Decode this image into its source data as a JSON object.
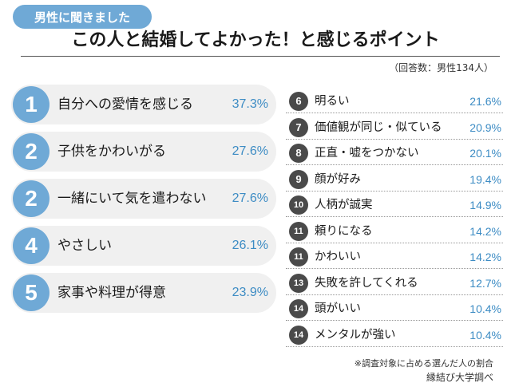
{
  "tag": "男性に聞きました",
  "title": "この人と結婚してよかった！と感じるポイント",
  "respondents": "（回答数：男性134人）",
  "footnote": "※調査対象に占める選んだ人の割合",
  "source": "縁結び大学調べ",
  "colors": {
    "accent": "#6fa9d6",
    "value": "#3d8cc4",
    "dark_badge": "#4a4a4a",
    "row_bg": "#f0f0f0"
  },
  "chart_data": {
    "type": "table",
    "title": "この人と結婚してよかった！と感じるポイント",
    "rows": [
      {
        "rank": "1",
        "label": "自分への愛情を感じる",
        "value": 37.3,
        "display": "37.3%"
      },
      {
        "rank": "2",
        "label": "子供をかわいがる",
        "value": 27.6,
        "display": "27.6%"
      },
      {
        "rank": "2",
        "label": "一緒にいて気を遣わない",
        "value": 27.6,
        "display": "27.6%"
      },
      {
        "rank": "4",
        "label": "やさしい",
        "value": 26.1,
        "display": "26.1%"
      },
      {
        "rank": "5",
        "label": "家事や料理が得意",
        "value": 23.9,
        "display": "23.9%"
      },
      {
        "rank": "6",
        "label": "明るい",
        "value": 21.6,
        "display": "21.6%"
      },
      {
        "rank": "7",
        "label": "価値観が同じ・似ている",
        "value": 20.9,
        "display": "20.9%"
      },
      {
        "rank": "8",
        "label": "正直・嘘をつかない",
        "value": 20.1,
        "display": "20.1%"
      },
      {
        "rank": "9",
        "label": "顔が好み",
        "value": 19.4,
        "display": "19.4%"
      },
      {
        "rank": "10",
        "label": "人柄が誠実",
        "value": 14.9,
        "display": "14.9%"
      },
      {
        "rank": "11",
        "label": "頼りになる",
        "value": 14.2,
        "display": "14.2%"
      },
      {
        "rank": "11",
        "label": "かわいい",
        "value": 14.2,
        "display": "14.2%"
      },
      {
        "rank": "13",
        "label": "失敗を許してくれる",
        "value": 12.7,
        "display": "12.7%"
      },
      {
        "rank": "14",
        "label": "頭がいい",
        "value": 10.4,
        "display": "10.4%"
      },
      {
        "rank": "14",
        "label": "メンタルが強い",
        "value": 10.4,
        "display": "10.4%"
      }
    ]
  }
}
